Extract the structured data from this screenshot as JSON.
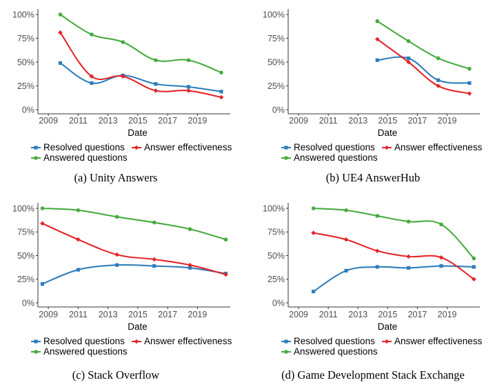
{
  "colors": {
    "resolved": "#2e7ebc",
    "effectiveness": "#e3262a",
    "answered": "#46ab3e",
    "axis": "#333333",
    "tick_text": "#4d4d4d"
  },
  "chart_data": [
    {
      "type": "line",
      "caption": "(a) Unity Answers",
      "xlabel": "Date",
      "xticks": [
        "2009",
        "2011",
        "2013",
        "2015",
        "2017",
        "2019"
      ],
      "yticks": [
        "0%",
        "25%",
        "50%",
        "75%",
        "100%"
      ],
      "xlim": [
        2008.3,
        2021.2
      ],
      "ylim": [
        0,
        100
      ],
      "legend": [
        "Resolved questions",
        "Answer effectiveness",
        "Answered questions"
      ],
      "series": [
        {
          "name": "Resolved questions",
          "color_key": "resolved",
          "marker": "square",
          "x": [
            2009.8,
            2011.9,
            2014.0,
            2016.2,
            2018.4,
            2020.6
          ],
          "values": [
            49,
            28,
            36,
            27,
            24,
            19
          ]
        },
        {
          "name": "Answer effectiveness",
          "color_key": "effectiveness",
          "marker": "diamond",
          "x": [
            2009.8,
            2011.9,
            2014.0,
            2016.2,
            2018.4,
            2020.6
          ],
          "values": [
            81,
            35,
            35,
            20,
            20,
            13
          ]
        },
        {
          "name": "Answered questions",
          "color_key": "answered",
          "marker": "circle",
          "x": [
            2009.8,
            2011.9,
            2014.0,
            2016.2,
            2018.4,
            2020.6
          ],
          "values": [
            100,
            79,
            71,
            52,
            52,
            39
          ]
        }
      ]
    },
    {
      "type": "line",
      "caption": "(b) UE4 AnswerHub",
      "xlabel": "Date",
      "xticks": [
        "2009",
        "2011",
        "2013",
        "2015",
        "2017",
        "2019"
      ],
      "yticks": [
        "0%",
        "25%",
        "50%",
        "75%",
        "100%"
      ],
      "xlim": [
        2008.3,
        2021.2
      ],
      "ylim": [
        0,
        100
      ],
      "legend": [
        "Resolved questions",
        "Answer effectiveness",
        "Answered questions"
      ],
      "series": [
        {
          "name": "Resolved questions",
          "color_key": "resolved",
          "marker": "square",
          "x": [
            2014.3,
            2016.4,
            2018.4,
            2020.5
          ],
          "values": [
            52,
            54,
            31,
            28
          ]
        },
        {
          "name": "Answer effectiveness",
          "color_key": "effectiveness",
          "marker": "diamond",
          "x": [
            2014.3,
            2016.4,
            2018.4,
            2020.5
          ],
          "values": [
            74,
            50,
            25,
            17
          ]
        },
        {
          "name": "Answered questions",
          "color_key": "answered",
          "marker": "circle",
          "x": [
            2014.3,
            2016.4,
            2018.4,
            2020.5
          ],
          "values": [
            93,
            72,
            54,
            43
          ]
        }
      ]
    },
    {
      "type": "line",
      "caption": "(c) Stack Overflow",
      "xlabel": "Date",
      "xticks": [
        "2009",
        "2011",
        "2013",
        "2015",
        "2017",
        "2019"
      ],
      "yticks": [
        "0%",
        "25%",
        "50%",
        "75%",
        "100%"
      ],
      "xlim": [
        2008.3,
        2021.2
      ],
      "ylim": [
        0,
        100
      ],
      "legend": [
        "Resolved questions",
        "Answer effectiveness",
        "Answered questions"
      ],
      "series": [
        {
          "name": "Resolved questions",
          "color_key": "resolved",
          "marker": "square",
          "x": [
            2008.6,
            2011.0,
            2013.6,
            2016.1,
            2018.5,
            2020.9
          ],
          "values": [
            20,
            35,
            40,
            39,
            37,
            31
          ]
        },
        {
          "name": "Answer effectiveness",
          "color_key": "effectiveness",
          "marker": "diamond",
          "x": [
            2008.6,
            2011.0,
            2013.6,
            2016.1,
            2018.5,
            2020.9
          ],
          "values": [
            84,
            67,
            51,
            46,
            40,
            30
          ]
        },
        {
          "name": "Answered questions",
          "color_key": "answered",
          "marker": "circle",
          "x": [
            2008.6,
            2011.0,
            2013.6,
            2016.1,
            2018.5,
            2020.9
          ],
          "values": [
            100,
            98,
            91,
            85,
            78,
            67
          ]
        }
      ]
    },
    {
      "type": "line",
      "caption": "(d) Game Development Stack Exchange",
      "xlabel": "Date",
      "xticks": [
        "2009",
        "2011",
        "2013",
        "2015",
        "2017",
        "2019"
      ],
      "yticks": [
        "0%",
        "25%",
        "50%",
        "75%",
        "100%"
      ],
      "xlim": [
        2008.3,
        2021.2
      ],
      "ylim": [
        0,
        100
      ],
      "legend": [
        "Resolved questions",
        "Answer effectiveness",
        "Answered questions"
      ],
      "series": [
        {
          "name": "Resolved questions",
          "color_key": "resolved",
          "marker": "square",
          "x": [
            2010.0,
            2012.2,
            2014.3,
            2016.4,
            2018.6,
            2020.8
          ],
          "values": [
            12,
            34,
            38,
            37,
            39,
            38
          ]
        },
        {
          "name": "Answer effectiveness",
          "color_key": "effectiveness",
          "marker": "diamond",
          "x": [
            2010.0,
            2012.2,
            2014.3,
            2016.4,
            2018.6,
            2020.8
          ],
          "values": [
            74,
            67,
            55,
            49,
            48,
            25
          ]
        },
        {
          "name": "Answered questions",
          "color_key": "answered",
          "marker": "circle",
          "x": [
            2010.0,
            2012.2,
            2014.3,
            2016.4,
            2018.6,
            2020.8
          ],
          "values": [
            100,
            98,
            92,
            86,
            83,
            47
          ]
        }
      ]
    }
  ]
}
